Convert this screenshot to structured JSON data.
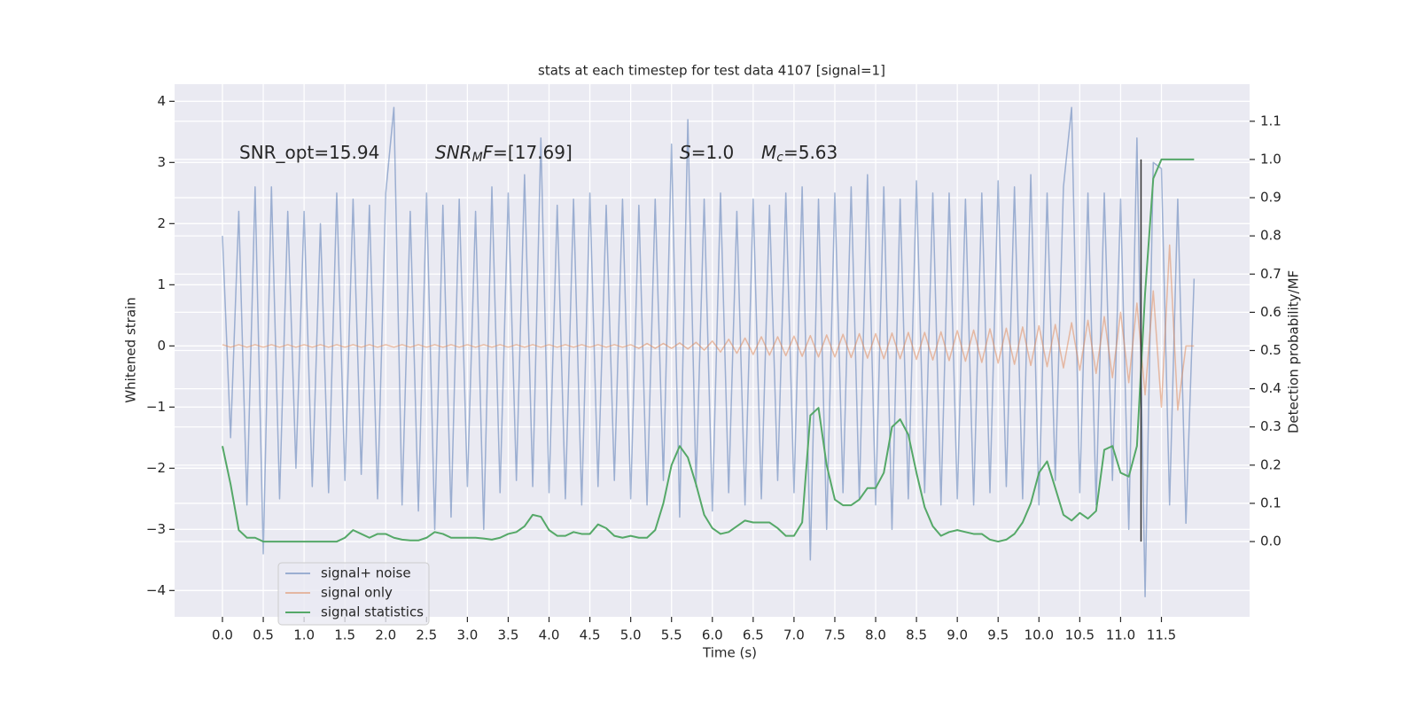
{
  "chart_data": {
    "type": "line",
    "title": "stats at each timestep for test data 4107 [signal=1]",
    "xlabel": "Time (s)",
    "ylabel": "Whitened strain",
    "y2label": "Detection probability/MF",
    "annotations": [
      [
        {
          "t": "SNR_opt=15.94"
        }
      ],
      [
        {
          "t": "SNR",
          "italic": true
        },
        {
          "t": "M",
          "italic": true,
          "sub": true
        },
        {
          "t": "F",
          "italic": true
        },
        {
          "t": "=[17.69]"
        }
      ],
      [
        {
          "t": "S",
          "italic": true
        },
        {
          "t": "=1.0"
        }
      ],
      [
        {
          "t": "M",
          "italic": true
        },
        {
          "t": "c",
          "italic": true,
          "sub": true
        },
        {
          "t": "=5.63"
        }
      ]
    ],
    "x": [
      0.0,
      0.1,
      0.2,
      0.3,
      0.4,
      0.5,
      0.6,
      0.7,
      0.8,
      0.9,
      1.0,
      1.1,
      1.2,
      1.3,
      1.4,
      1.5,
      1.6,
      1.7,
      1.8,
      1.9,
      2.0,
      2.1,
      2.2,
      2.3,
      2.4,
      2.5,
      2.6,
      2.7,
      2.8,
      2.9,
      3.0,
      3.1,
      3.2,
      3.3,
      3.4,
      3.5,
      3.6,
      3.7,
      3.8,
      3.9,
      4.0,
      4.1,
      4.2,
      4.3,
      4.4,
      4.5,
      4.6,
      4.7,
      4.8,
      4.9,
      5.0,
      5.1,
      5.2,
      5.3,
      5.4,
      5.5,
      5.6,
      5.7,
      5.8,
      5.9,
      6.0,
      6.1,
      6.2,
      6.3,
      6.4,
      6.5,
      6.6,
      6.7,
      6.8,
      6.9,
      7.0,
      7.1,
      7.2,
      7.3,
      7.4,
      7.5,
      7.6,
      7.7,
      7.8,
      7.9,
      8.0,
      8.1,
      8.2,
      8.3,
      8.4,
      8.5,
      8.6,
      8.7,
      8.8,
      8.9,
      9.0,
      9.1,
      9.2,
      9.3,
      9.4,
      9.5,
      9.6,
      9.7,
      9.8,
      9.9,
      10.0,
      10.1,
      10.2,
      10.3,
      10.4,
      10.5,
      10.6,
      10.7,
      10.8,
      10.9,
      11.0,
      11.1,
      11.2,
      11.3,
      11.4,
      11.5,
      11.6,
      11.7,
      11.8,
      11.9
    ],
    "series": [
      {
        "name": "signal+ noise",
        "color": "#4c72b0",
        "values": [
          1.8,
          -1.5,
          2.2,
          -2.6,
          2.6,
          -3.4,
          2.6,
          -2.5,
          2.2,
          -2.0,
          2.2,
          -2.3,
          2.0,
          -2.4,
          2.5,
          -2.2,
          2.4,
          -2.1,
          2.3,
          -2.5,
          2.5,
          3.9,
          -2.6,
          2.2,
          -2.7,
          2.5,
          -3.0,
          2.3,
          -2.8,
          2.4,
          -2.3,
          2.2,
          -3.0,
          2.6,
          -2.4,
          2.5,
          -2.2,
          2.8,
          -2.3,
          3.4,
          -2.4,
          2.3,
          -2.5,
          2.4,
          -2.6,
          2.5,
          -2.3,
          2.3,
          -2.2,
          2.4,
          -2.5,
          2.3,
          -2.6,
          2.4,
          -2.2,
          3.3,
          -2.8,
          3.7,
          -2.3,
          2.4,
          -2.7,
          2.5,
          -2.4,
          2.2,
          -2.6,
          2.4,
          -2.5,
          2.3,
          -2.2,
          2.5,
          -2.4,
          2.6,
          -3.5,
          2.4,
          -3.0,
          2.5,
          -2.4,
          2.6,
          -2.5,
          2.8,
          -2.6,
          2.6,
          -3.0,
          2.4,
          -2.5,
          2.7,
          -2.4,
          2.5,
          -2.6,
          2.5,
          -2.5,
          2.4,
          -2.6,
          2.5,
          -2.4,
          2.7,
          -2.3,
          2.6,
          -2.5,
          2.8,
          -2.6,
          2.5,
          -2.2,
          2.6,
          3.9,
          -2.4,
          2.5,
          -2.6,
          2.5,
          -2.2,
          2.4,
          -3.0,
          3.4,
          -4.1,
          3.0,
          2.9,
          -2.6,
          2.4,
          -2.9,
          1.1
        ]
      },
      {
        "name": "signal only",
        "color": "#dd8452",
        "values": [
          0.02,
          -0.02,
          0.02,
          -0.02,
          0.02,
          -0.02,
          0.02,
          -0.02,
          0.02,
          -0.02,
          0.02,
          -0.02,
          0.02,
          -0.02,
          0.02,
          -0.02,
          0.02,
          -0.02,
          0.02,
          -0.02,
          0.02,
          -0.02,
          0.02,
          -0.02,
          0.02,
          -0.02,
          0.02,
          -0.02,
          0.02,
          -0.02,
          0.02,
          -0.02,
          0.02,
          -0.02,
          0.02,
          -0.02,
          0.02,
          -0.02,
          0.02,
          -0.02,
          0.02,
          -0.02,
          0.02,
          -0.02,
          0.02,
          -0.02,
          0.02,
          -0.02,
          0.02,
          -0.02,
          0.02,
          -0.04,
          0.04,
          -0.04,
          0.04,
          -0.04,
          0.05,
          -0.05,
          0.06,
          -0.07,
          0.08,
          -0.1,
          0.11,
          -0.12,
          0.13,
          -0.14,
          0.15,
          -0.15,
          0.15,
          -0.16,
          0.16,
          -0.17,
          0.17,
          -0.18,
          0.18,
          -0.18,
          0.19,
          -0.19,
          0.2,
          -0.2,
          0.2,
          -0.21,
          0.21,
          -0.21,
          0.22,
          -0.22,
          0.22,
          -0.23,
          0.23,
          -0.24,
          0.25,
          -0.25,
          0.26,
          -0.27,
          0.28,
          -0.28,
          0.29,
          -0.3,
          0.31,
          -0.32,
          0.33,
          -0.34,
          0.35,
          -0.36,
          0.38,
          -0.4,
          0.42,
          -0.45,
          0.48,
          -0.52,
          0.55,
          -0.6,
          0.7,
          -0.8,
          0.9,
          -1.0,
          1.65,
          -1.05,
          0.0,
          0.0
        ]
      },
      {
        "name": "signal statistics",
        "color": "#55a868",
        "axis": "y2",
        "values": [
          0.25,
          0.15,
          0.03,
          0.01,
          0.01,
          0.0,
          0.0,
          0.0,
          0.0,
          0.0,
          0.0,
          0.0,
          0.0,
          0.0,
          0.0,
          0.01,
          0.03,
          0.02,
          0.01,
          0.02,
          0.02,
          0.01,
          0.005,
          0.003,
          0.003,
          0.01,
          0.025,
          0.02,
          0.01,
          0.01,
          0.01,
          0.01,
          0.008,
          0.005,
          0.01,
          0.02,
          0.025,
          0.04,
          0.07,
          0.065,
          0.03,
          0.015,
          0.015,
          0.025,
          0.02,
          0.02,
          0.045,
          0.035,
          0.015,
          0.01,
          0.015,
          0.01,
          0.01,
          0.03,
          0.1,
          0.2,
          0.25,
          0.22,
          0.15,
          0.07,
          0.035,
          0.02,
          0.025,
          0.04,
          0.055,
          0.05,
          0.05,
          0.05,
          0.035,
          0.015,
          0.015,
          0.05,
          0.33,
          0.35,
          0.2,
          0.11,
          0.095,
          0.095,
          0.11,
          0.14,
          0.14,
          0.18,
          0.3,
          0.32,
          0.28,
          0.18,
          0.09,
          0.04,
          0.015,
          0.025,
          0.03,
          0.025,
          0.02,
          0.02,
          0.005,
          0.0,
          0.005,
          0.02,
          0.05,
          0.1,
          0.18,
          0.21,
          0.14,
          0.07,
          0.055,
          0.075,
          0.06,
          0.08,
          0.24,
          0.25,
          0.18,
          0.17,
          0.25,
          0.65,
          0.95,
          1.0,
          1.0,
          1.0,
          1.0,
          1.0
        ]
      }
    ],
    "vline": {
      "x": 11.25,
      "ymin": 0.0,
      "ymax": 1.0,
      "axis": "y2",
      "color": "#333333"
    },
    "xlim": [
      -0.586,
      12.58
    ],
    "xticks": [
      {
        "value": 0,
        "label": "0.0"
      },
      {
        "value": 0.5,
        "label": "0.5"
      },
      {
        "value": 1,
        "label": "1.0"
      },
      {
        "value": 1.5,
        "label": "1.5"
      },
      {
        "value": 2,
        "label": "2.0"
      },
      {
        "value": 2.5,
        "label": "2.5"
      },
      {
        "value": 3,
        "label": "3.0"
      },
      {
        "value": 3.5,
        "label": "3.5"
      },
      {
        "value": 4,
        "label": "4.0"
      },
      {
        "value": 4.5,
        "label": "4.5"
      },
      {
        "value": 5,
        "label": "5.0"
      },
      {
        "value": 5.5,
        "label": "5.5"
      },
      {
        "value": 6,
        "label": "6.0"
      },
      {
        "value": 6.5,
        "label": "6.5"
      },
      {
        "value": 7,
        "label": "7.0"
      },
      {
        "value": 7.5,
        "label": "7.5"
      },
      {
        "value": 8,
        "label": "8.0"
      },
      {
        "value": 8.5,
        "label": "8.5"
      },
      {
        "value": 9,
        "label": "9.0"
      },
      {
        "value": 9.5,
        "label": "9.5"
      },
      {
        "value": 10,
        "label": "10.0"
      },
      {
        "value": 10.5,
        "label": "10.5"
      },
      {
        "value": 11,
        "label": "11.0"
      },
      {
        "value": 11.5,
        "label": "11.5"
      }
    ],
    "ylim": [
      -4.43,
      4.28
    ],
    "yticks": [
      {
        "value": -4,
        "label": "−4"
      },
      {
        "value": -3,
        "label": "−3"
      },
      {
        "value": -2,
        "label": "−2"
      },
      {
        "value": -1,
        "label": "−1"
      },
      0,
      1,
      2,
      3,
      4
    ],
    "y2lim": [
      -0.197,
      1.197
    ],
    "y2ticks": [
      {
        "value": 0,
        "label": "0.0"
      },
      {
        "value": 0.1,
        "label": "0.1"
      },
      {
        "value": 0.2,
        "label": "0.2"
      },
      {
        "value": 0.3,
        "label": "0.3"
      },
      {
        "value": 0.4,
        "label": "0.4"
      },
      {
        "value": 0.5,
        "label": "0.5"
      },
      {
        "value": 0.6,
        "label": "0.6"
      },
      {
        "value": 0.7,
        "label": "0.7"
      },
      {
        "value": 0.8,
        "label": "0.8"
      },
      {
        "value": 0.9,
        "label": "0.9"
      },
      {
        "value": 1,
        "label": "1.0"
      },
      {
        "value": 1.1,
        "label": "1.1"
      }
    ],
    "grid": true,
    "legend": "lower left",
    "background": "#eaeaf2"
  }
}
